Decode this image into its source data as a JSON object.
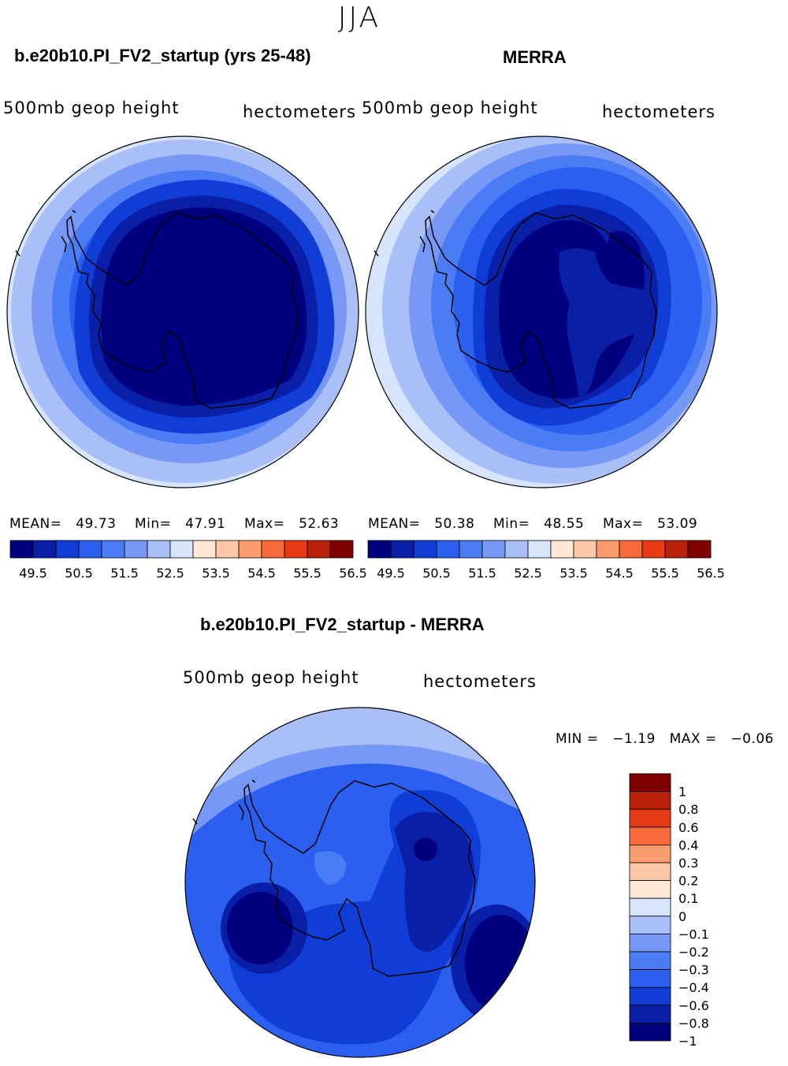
{
  "season": "JJA",
  "panels": [
    {
      "title": "b.e20b10.PI_FV2_startup (yrs 25-48)",
      "field_label": "500mb geop height",
      "units": "hectometers",
      "mean_label": "MEAN=",
      "mean": "49.73",
      "min_label": "Min=",
      "min": "47.91",
      "max_label": "Max=",
      "max": "52.63"
    },
    {
      "title": "MERRA",
      "field_label": "500mb geop height",
      "units": "hectometers",
      "mean_label": "MEAN=",
      "mean": "50.38",
      "min_label": "Min=",
      "min": "48.55",
      "max_label": "Max=",
      "max": "53.09"
    }
  ],
  "diff": {
    "title": "b.e20b10.PI_FV2_startup - MERRA",
    "field_label": "500mb geop height",
    "units": "hectometers",
    "min_label": "MIN =",
    "min": "−1.19",
    "max_label": "MAX =",
    "max": "−0.06"
  },
  "colors": {
    "abs_scale": [
      "#00007f",
      "#0a1fa8",
      "#0f3dd6",
      "#2a5ff0",
      "#4a7df5",
      "#7799f5",
      "#aabff7",
      "#d6e5fb",
      "#fde8d6",
      "#fcc7a8",
      "#fb9c6e",
      "#f86a3b",
      "#e83a14",
      "#b9200a",
      "#7f0000"
    ],
    "diff_scale": [
      "#00007f",
      "#0a1fa8",
      "#0f3dd6",
      "#2a5ff0",
      "#4a7df5",
      "#7799f5",
      "#aabff7",
      "#d6e5fb",
      "#fde8d6",
      "#fcc7a8",
      "#fb9c6e",
      "#f86a3b",
      "#e83a14",
      "#b9200a",
      "#7f0000"
    ]
  },
  "chart_data": [
    {
      "type": "heatmap",
      "title": "b.e20b10.PI_FV2_startup (yrs 25-48)",
      "projection": "polar-stereographic south",
      "levels": [
        49.5,
        50,
        50.5,
        51,
        51.5,
        52,
        52.5,
        53,
        53.5,
        54,
        54.5,
        55,
        55.5,
        56,
        56.5
      ],
      "tick_labels": [
        "49.5",
        "50.5",
        "51.5",
        "52.5",
        "53.5",
        "54.5",
        "55.5",
        "56.5"
      ],
      "stats": {
        "mean": 49.73,
        "min": 47.91,
        "max": 52.63
      },
      "units": "hectometers"
    },
    {
      "type": "heatmap",
      "title": "MERRA",
      "projection": "polar-stereographic south",
      "levels": [
        49.5,
        50,
        50.5,
        51,
        51.5,
        52,
        52.5,
        53,
        53.5,
        54,
        54.5,
        55,
        55.5,
        56,
        56.5
      ],
      "tick_labels": [
        "49.5",
        "50.5",
        "51.5",
        "52.5",
        "53.5",
        "54.5",
        "55.5",
        "56.5"
      ],
      "stats": {
        "mean": 50.38,
        "min": 48.55,
        "max": 53.09
      },
      "units": "hectometers"
    },
    {
      "type": "heatmap",
      "title": "b.e20b10.PI_FV2_startup - MERRA",
      "projection": "polar-stereographic south",
      "levels": [
        -1,
        -0.8,
        -0.6,
        -0.4,
        -0.3,
        -0.2,
        -0.1,
        0,
        0.1,
        0.2,
        0.3,
        0.4,
        0.6,
        0.8,
        1
      ],
      "tick_labels": [
        "1",
        "0.8",
        "0.6",
        "0.4",
        "0.3",
        "0.2",
        "0.1",
        "0",
        "−0.1",
        "−0.2",
        "−0.3",
        "−0.4",
        "−0.6",
        "−0.8",
        "−1"
      ],
      "stats": {
        "min": -1.19,
        "max": -0.06
      },
      "units": "hectometers"
    }
  ]
}
